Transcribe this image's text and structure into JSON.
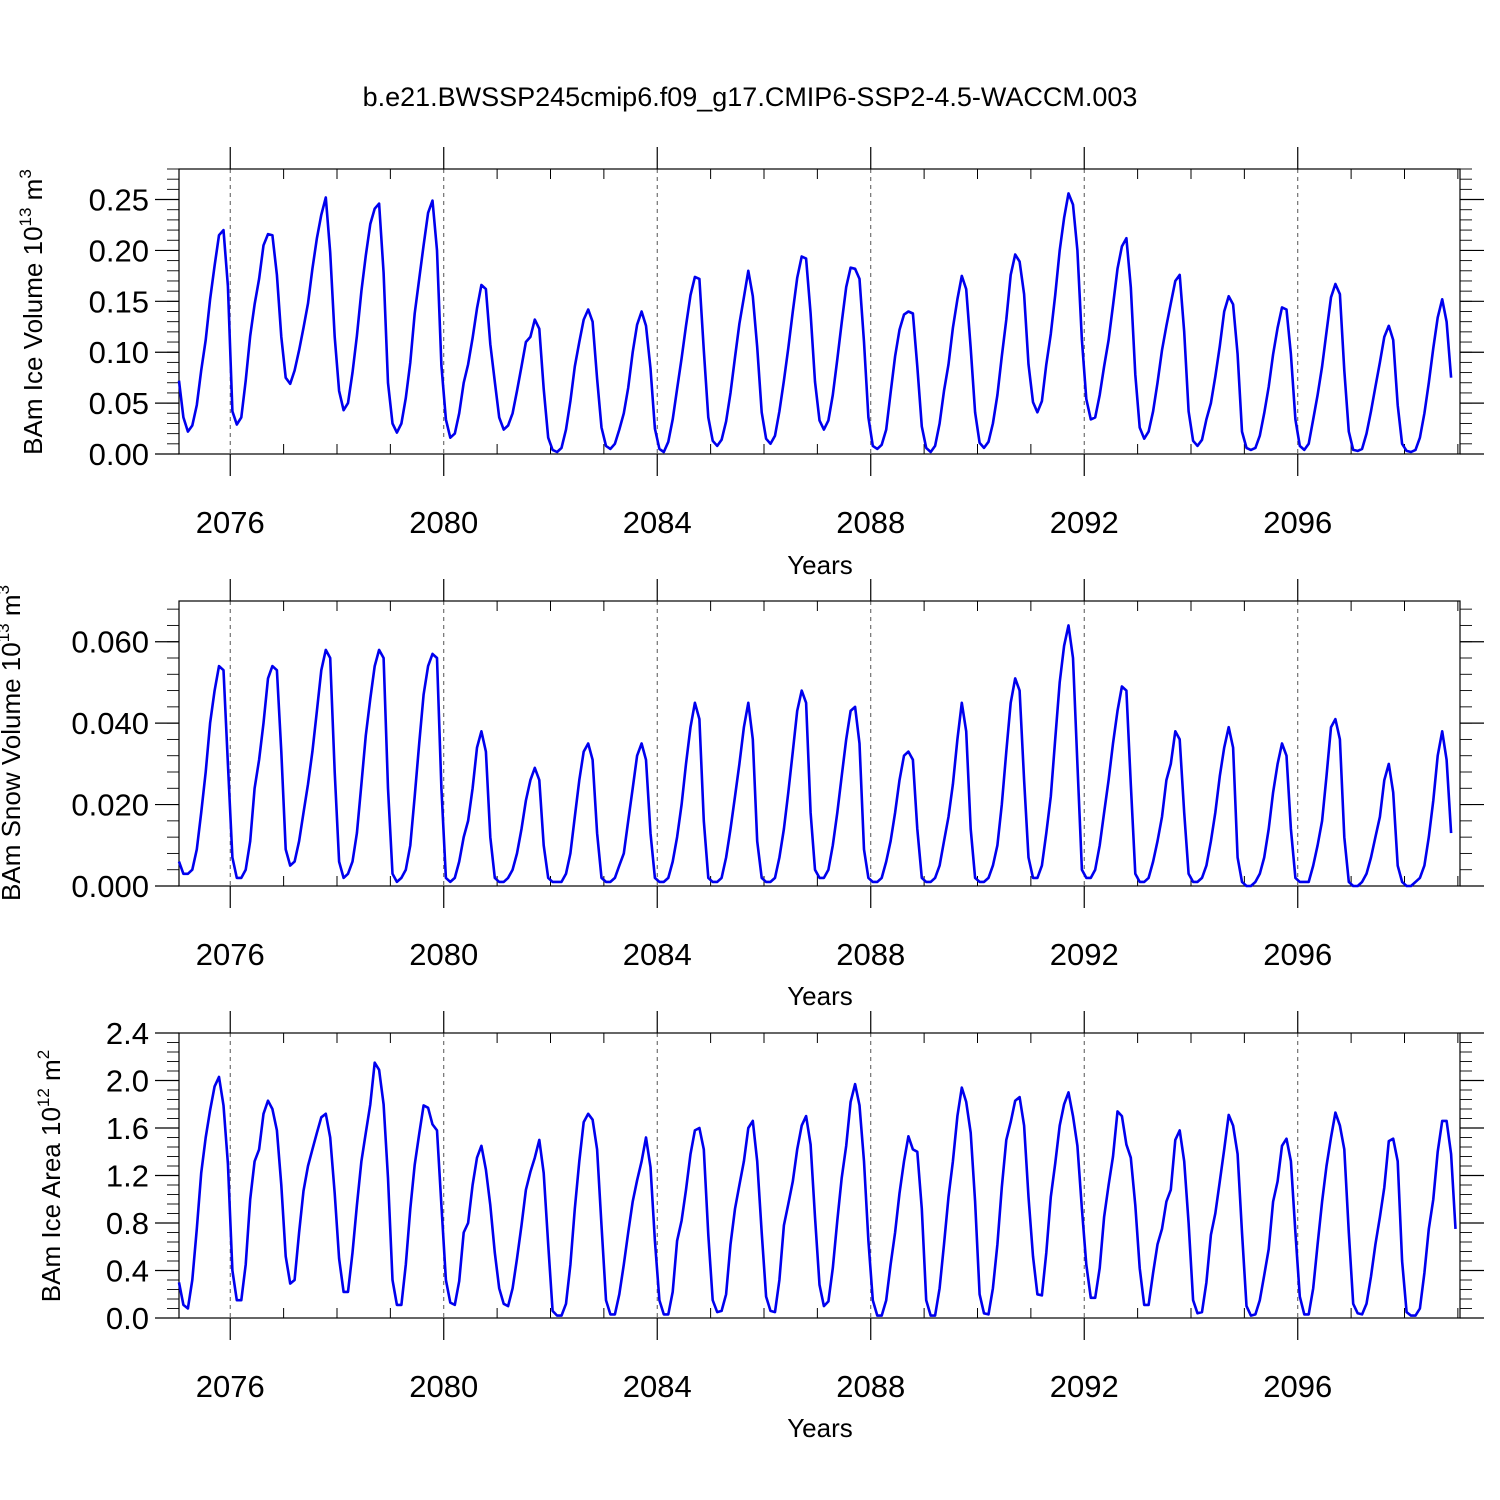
{
  "title": "b.e21.BWSSP245cmip6.f09_g17.CMIP6-SSP2-4.5-WACCM.003",
  "chart_data": [
    {
      "type": "line",
      "title": "b.e21.BWSSP245cmip6.f09_g17.CMIP6-SSP2-4.5-WACCM.003",
      "xlabel": "Years",
      "ylabel": {
        "base": "BAm Ice Volume 10",
        "exp": "13",
        "unit": " m",
        "unit_exp": "3"
      },
      "xlim": [
        2075.04,
        2099.04
      ],
      "ylim": [
        0,
        0.28
      ],
      "xticks": [
        2076,
        2080,
        2084,
        2088,
        2092,
        2096
      ],
      "xtick_labels": [
        "2076",
        "2080",
        "2084",
        "2088",
        "2092",
        "2096"
      ],
      "yticks": [
        0,
        0.05,
        0.1,
        0.15,
        0.2,
        0.25
      ],
      "ytick_labels": [
        "0.00",
        "0.05",
        "0.10",
        "0.15",
        "0.20",
        "0.25"
      ],
      "grid": "dashed vertical lines at labeled years",
      "color": "#0000ee",
      "series": [
        {
          "x_start": 2075.04,
          "x_step": 0.08333,
          "values": [
            0.072,
            0.036,
            0.022,
            0.028,
            0.048,
            0.082,
            0.112,
            0.152,
            0.185,
            0.215,
            0.22,
            0.165,
            0.042,
            0.029,
            0.036,
            0.072,
            0.116,
            0.147,
            0.172,
            0.205,
            0.216,
            0.215,
            0.176,
            0.115,
            0.075,
            0.069,
            0.082,
            0.102,
            0.124,
            0.148,
            0.182,
            0.212,
            0.235,
            0.252,
            0.198,
            0.115,
            0.062,
            0.043,
            0.05,
            0.08,
            0.116,
            0.16,
            0.195,
            0.226,
            0.241,
            0.246,
            0.178,
            0.07,
            0.03,
            0.021,
            0.03,
            0.055,
            0.09,
            0.138,
            0.172,
            0.205,
            0.237,
            0.249,
            0.2,
            0.087,
            0.034,
            0.016,
            0.02,
            0.04,
            0.07,
            0.088,
            0.114,
            0.143,
            0.166,
            0.162,
            0.108,
            0.071,
            0.036,
            0.024,
            0.028,
            0.04,
            0.062,
            0.086,
            0.11,
            0.115,
            0.132,
            0.123,
            0.064,
            0.016,
            0.004,
            0.002,
            0.006,
            0.024,
            0.052,
            0.086,
            0.11,
            0.132,
            0.142,
            0.13,
            0.074,
            0.026,
            0.008,
            0.005,
            0.01,
            0.024,
            0.04,
            0.065,
            0.1,
            0.127,
            0.14,
            0.126,
            0.084,
            0.025,
            0.005,
            0.002,
            0.012,
            0.034,
            0.064,
            0.094,
            0.126,
            0.156,
            0.174,
            0.172,
            0.102,
            0.036,
            0.013,
            0.008,
            0.014,
            0.032,
            0.06,
            0.095,
            0.128,
            0.154,
            0.18,
            0.155,
            0.105,
            0.041,
            0.015,
            0.01,
            0.018,
            0.042,
            0.072,
            0.104,
            0.14,
            0.173,
            0.194,
            0.192,
            0.138,
            0.071,
            0.033,
            0.024,
            0.033,
            0.058,
            0.093,
            0.129,
            0.164,
            0.183,
            0.182,
            0.172,
            0.11,
            0.036,
            0.008,
            0.005,
            0.009,
            0.024,
            0.06,
            0.096,
            0.122,
            0.137,
            0.14,
            0.138,
            0.086,
            0.027,
            0.006,
            0.002,
            0.008,
            0.03,
            0.062,
            0.088,
            0.124,
            0.152,
            0.175,
            0.162,
            0.104,
            0.041,
            0.011,
            0.006,
            0.012,
            0.03,
            0.058,
            0.096,
            0.132,
            0.176,
            0.196,
            0.189,
            0.157,
            0.088,
            0.051,
            0.041,
            0.052,
            0.088,
            0.118,
            0.156,
            0.2,
            0.232,
            0.256,
            0.245,
            0.2,
            0.112,
            0.054,
            0.034,
            0.036,
            0.058,
            0.086,
            0.112,
            0.146,
            0.182,
            0.204,
            0.212,
            0.164,
            0.078,
            0.026,
            0.015,
            0.022,
            0.042,
            0.07,
            0.102,
            0.126,
            0.148,
            0.17,
            0.176,
            0.12,
            0.042,
            0.013,
            0.008,
            0.014,
            0.034,
            0.05,
            0.076,
            0.106,
            0.14,
            0.155,
            0.147,
            0.098,
            0.022,
            0.006,
            0.004,
            0.006,
            0.018,
            0.04,
            0.066,
            0.098,
            0.124,
            0.144,
            0.142,
            0.098,
            0.034,
            0.008,
            0.004,
            0.01,
            0.034,
            0.058,
            0.086,
            0.12,
            0.154,
            0.167,
            0.157,
            0.082,
            0.022,
            0.004,
            0.003,
            0.005,
            0.02,
            0.042,
            0.066,
            0.09,
            0.115,
            0.126,
            0.112,
            0.048,
            0.01,
            0.003,
            0.002,
            0.004,
            0.016,
            0.04,
            0.07,
            0.104,
            0.134,
            0.152,
            0.13,
            0.075
          ]
        }
      ]
    },
    {
      "type": "line",
      "xlabel": "Years",
      "ylabel": {
        "base": "BAm Snow Volume 10",
        "exp": "13",
        "unit": " m",
        "unit_exp": "3"
      },
      "xlim": [
        2075.04,
        2099.04
      ],
      "ylim": [
        0,
        0.07
      ],
      "xticks": [
        2076,
        2080,
        2084,
        2088,
        2092,
        2096
      ],
      "xtick_labels": [
        "2076",
        "2080",
        "2084",
        "2088",
        "2092",
        "2096"
      ],
      "yticks": [
        0,
        0.02,
        0.04,
        0.06
      ],
      "ytick_labels": [
        "0.000",
        "0.020",
        "0.040",
        "0.060"
      ],
      "grid": "dashed vertical lines at labeled years",
      "color": "#0000ee",
      "series": [
        {
          "x_start": 2075.04,
          "x_step": 0.08333,
          "values": [
            0.006,
            0.003,
            0.003,
            0.004,
            0.009,
            0.018,
            0.028,
            0.04,
            0.048,
            0.054,
            0.053,
            0.03,
            0.007,
            0.002,
            0.002,
            0.004,
            0.011,
            0.024,
            0.031,
            0.04,
            0.051,
            0.054,
            0.053,
            0.033,
            0.009,
            0.005,
            0.006,
            0.011,
            0.018,
            0.025,
            0.033,
            0.043,
            0.053,
            0.058,
            0.056,
            0.028,
            0.006,
            0.002,
            0.003,
            0.006,
            0.013,
            0.025,
            0.037,
            0.046,
            0.054,
            0.058,
            0.056,
            0.024,
            0.003,
            0.001,
            0.002,
            0.004,
            0.01,
            0.022,
            0.035,
            0.047,
            0.054,
            0.057,
            0.056,
            0.024,
            0.002,
            0.001,
            0.002,
            0.006,
            0.012,
            0.016,
            0.024,
            0.034,
            0.038,
            0.033,
            0.012,
            0.002,
            0.001,
            0.001,
            0.002,
            0.004,
            0.008,
            0.014,
            0.021,
            0.026,
            0.029,
            0.026,
            0.01,
            0.002,
            0.001,
            0.001,
            0.001,
            0.003,
            0.008,
            0.017,
            0.026,
            0.033,
            0.035,
            0.031,
            0.013,
            0.002,
            0.001,
            0.001,
            0.002,
            0.005,
            0.008,
            0.016,
            0.024,
            0.032,
            0.035,
            0.031,
            0.013,
            0.002,
            0.001,
            0.001,
            0.002,
            0.006,
            0.012,
            0.02,
            0.03,
            0.039,
            0.045,
            0.041,
            0.016,
            0.002,
            0.001,
            0.001,
            0.002,
            0.007,
            0.014,
            0.022,
            0.03,
            0.039,
            0.045,
            0.036,
            0.011,
            0.002,
            0.001,
            0.001,
            0.002,
            0.007,
            0.014,
            0.023,
            0.033,
            0.043,
            0.048,
            0.045,
            0.018,
            0.004,
            0.002,
            0.002,
            0.004,
            0.01,
            0.018,
            0.027,
            0.036,
            0.043,
            0.044,
            0.035,
            0.009,
            0.002,
            0.001,
            0.001,
            0.002,
            0.006,
            0.011,
            0.018,
            0.026,
            0.032,
            0.033,
            0.031,
            0.014,
            0.002,
            0.001,
            0.001,
            0.002,
            0.005,
            0.011,
            0.017,
            0.025,
            0.036,
            0.045,
            0.038,
            0.014,
            0.002,
            0.001,
            0.001,
            0.002,
            0.005,
            0.01,
            0.02,
            0.033,
            0.045,
            0.051,
            0.048,
            0.026,
            0.007,
            0.002,
            0.002,
            0.005,
            0.013,
            0.022,
            0.036,
            0.05,
            0.059,
            0.064,
            0.056,
            0.03,
            0.004,
            0.002,
            0.002,
            0.004,
            0.01,
            0.018,
            0.026,
            0.035,
            0.043,
            0.049,
            0.048,
            0.025,
            0.003,
            0.001,
            0.001,
            0.002,
            0.006,
            0.011,
            0.017,
            0.026,
            0.03,
            0.038,
            0.036,
            0.018,
            0.003,
            0.001,
            0.001,
            0.002,
            0.005,
            0.011,
            0.018,
            0.027,
            0.034,
            0.039,
            0.034,
            0.007,
            0.001,
            0.0,
            0.0,
            0.001,
            0.003,
            0.007,
            0.014,
            0.023,
            0.03,
            0.035,
            0.032,
            0.014,
            0.002,
            0.001,
            0.001,
            0.001,
            0.005,
            0.01,
            0.016,
            0.027,
            0.039,
            0.041,
            0.036,
            0.012,
            0.001,
            0.0,
            0.0,
            0.001,
            0.003,
            0.007,
            0.012,
            0.017,
            0.026,
            0.03,
            0.023,
            0.005,
            0.001,
            0.0,
            0.0,
            0.001,
            0.002,
            0.005,
            0.012,
            0.021,
            0.032,
            0.038,
            0.031,
            0.013
          ]
        }
      ]
    },
    {
      "type": "line",
      "xlabel": "Years",
      "ylabel": {
        "base": "BAm Ice Area 10",
        "exp": "12",
        "unit": " m",
        "unit_exp": "2"
      },
      "xlim": [
        2075.04,
        2099.04
      ],
      "ylim": [
        0,
        2.4
      ],
      "xticks": [
        2076,
        2080,
        2084,
        2088,
        2092,
        2096
      ],
      "xtick_labels": [
        "2076",
        "2080",
        "2084",
        "2088",
        "2092",
        "2096"
      ],
      "yticks": [
        0,
        0.4,
        0.8,
        1.2,
        1.6,
        2.0,
        2.4
      ],
      "ytick_labels": [
        "0.0",
        "0.4",
        "0.8",
        "1.2",
        "1.6",
        "2.0",
        "2.4"
      ],
      "grid": "dashed vertical lines at labeled years",
      "color": "#0000ee",
      "series": [
        {
          "x_start": 2075.04,
          "x_step": 0.08333,
          "values": [
            0.3,
            0.11,
            0.08,
            0.32,
            0.75,
            1.22,
            1.52,
            1.75,
            1.95,
            2.03,
            1.79,
            1.3,
            0.4,
            0.15,
            0.15,
            0.45,
            1.0,
            1.32,
            1.42,
            1.72,
            1.83,
            1.76,
            1.58,
            1.12,
            0.52,
            0.29,
            0.32,
            0.72,
            1.07,
            1.28,
            1.42,
            1.56,
            1.69,
            1.72,
            1.52,
            1.05,
            0.5,
            0.22,
            0.22,
            0.55,
            0.95,
            1.32,
            1.56,
            1.8,
            2.15,
            2.09,
            1.8,
            1.18,
            0.32,
            0.11,
            0.11,
            0.45,
            0.92,
            1.29,
            1.55,
            1.79,
            1.77,
            1.63,
            1.58,
            0.95,
            0.32,
            0.13,
            0.11,
            0.31,
            0.72,
            0.8,
            1.12,
            1.35,
            1.45,
            1.25,
            0.95,
            0.55,
            0.25,
            0.12,
            0.1,
            0.25,
            0.5,
            0.78,
            1.08,
            1.23,
            1.35,
            1.5,
            1.22,
            0.62,
            0.06,
            0.02,
            0.02,
            0.12,
            0.45,
            0.92,
            1.32,
            1.65,
            1.72,
            1.67,
            1.42,
            0.78,
            0.15,
            0.03,
            0.03,
            0.2,
            0.45,
            0.72,
            0.98,
            1.16,
            1.32,
            1.52,
            1.27,
            0.65,
            0.15,
            0.03,
            0.03,
            0.22,
            0.65,
            0.82,
            1.08,
            1.38,
            1.58,
            1.6,
            1.42,
            0.7,
            0.15,
            0.05,
            0.06,
            0.2,
            0.62,
            0.92,
            1.12,
            1.32,
            1.6,
            1.66,
            1.32,
            0.72,
            0.18,
            0.06,
            0.05,
            0.32,
            0.78,
            0.96,
            1.15,
            1.42,
            1.62,
            1.7,
            1.46,
            0.85,
            0.28,
            0.1,
            0.14,
            0.42,
            0.82,
            1.18,
            1.45,
            1.82,
            1.97,
            1.79,
            1.32,
            0.65,
            0.15,
            0.02,
            0.02,
            0.15,
            0.45,
            0.72,
            1.05,
            1.32,
            1.53,
            1.42,
            1.4,
            0.92,
            0.15,
            0.02,
            0.02,
            0.25,
            0.62,
            1.02,
            1.32,
            1.7,
            1.94,
            1.82,
            1.56,
            0.98,
            0.2,
            0.04,
            0.03,
            0.25,
            0.62,
            1.1,
            1.5,
            1.65,
            1.83,
            1.86,
            1.62,
            1.02,
            0.52,
            0.2,
            0.19,
            0.55,
            1.02,
            1.3,
            1.62,
            1.8,
            1.9,
            1.7,
            1.45,
            0.92,
            0.45,
            0.17,
            0.17,
            0.42,
            0.85,
            1.12,
            1.36,
            1.74,
            1.7,
            1.46,
            1.35,
            0.95,
            0.42,
            0.11,
            0.11,
            0.38,
            0.62,
            0.75,
            0.98,
            1.08,
            1.5,
            1.58,
            1.32,
            0.8,
            0.15,
            0.04,
            0.05,
            0.3,
            0.7,
            0.88,
            1.15,
            1.42,
            1.71,
            1.62,
            1.38,
            0.72,
            0.1,
            0.02,
            0.03,
            0.15,
            0.36,
            0.58,
            0.98,
            1.15,
            1.45,
            1.51,
            1.32,
            0.72,
            0.18,
            0.03,
            0.03,
            0.25,
            0.62,
            0.98,
            1.28,
            1.52,
            1.73,
            1.62,
            1.42,
            0.72,
            0.12,
            0.04,
            0.03,
            0.12,
            0.35,
            0.62,
            0.85,
            1.1,
            1.49,
            1.51,
            1.32,
            0.48,
            0.05,
            0.02,
            0.02,
            0.08,
            0.38,
            0.75,
            1.0,
            1.4,
            1.66,
            1.66,
            1.38,
            0.75
          ]
        }
      ]
    }
  ]
}
